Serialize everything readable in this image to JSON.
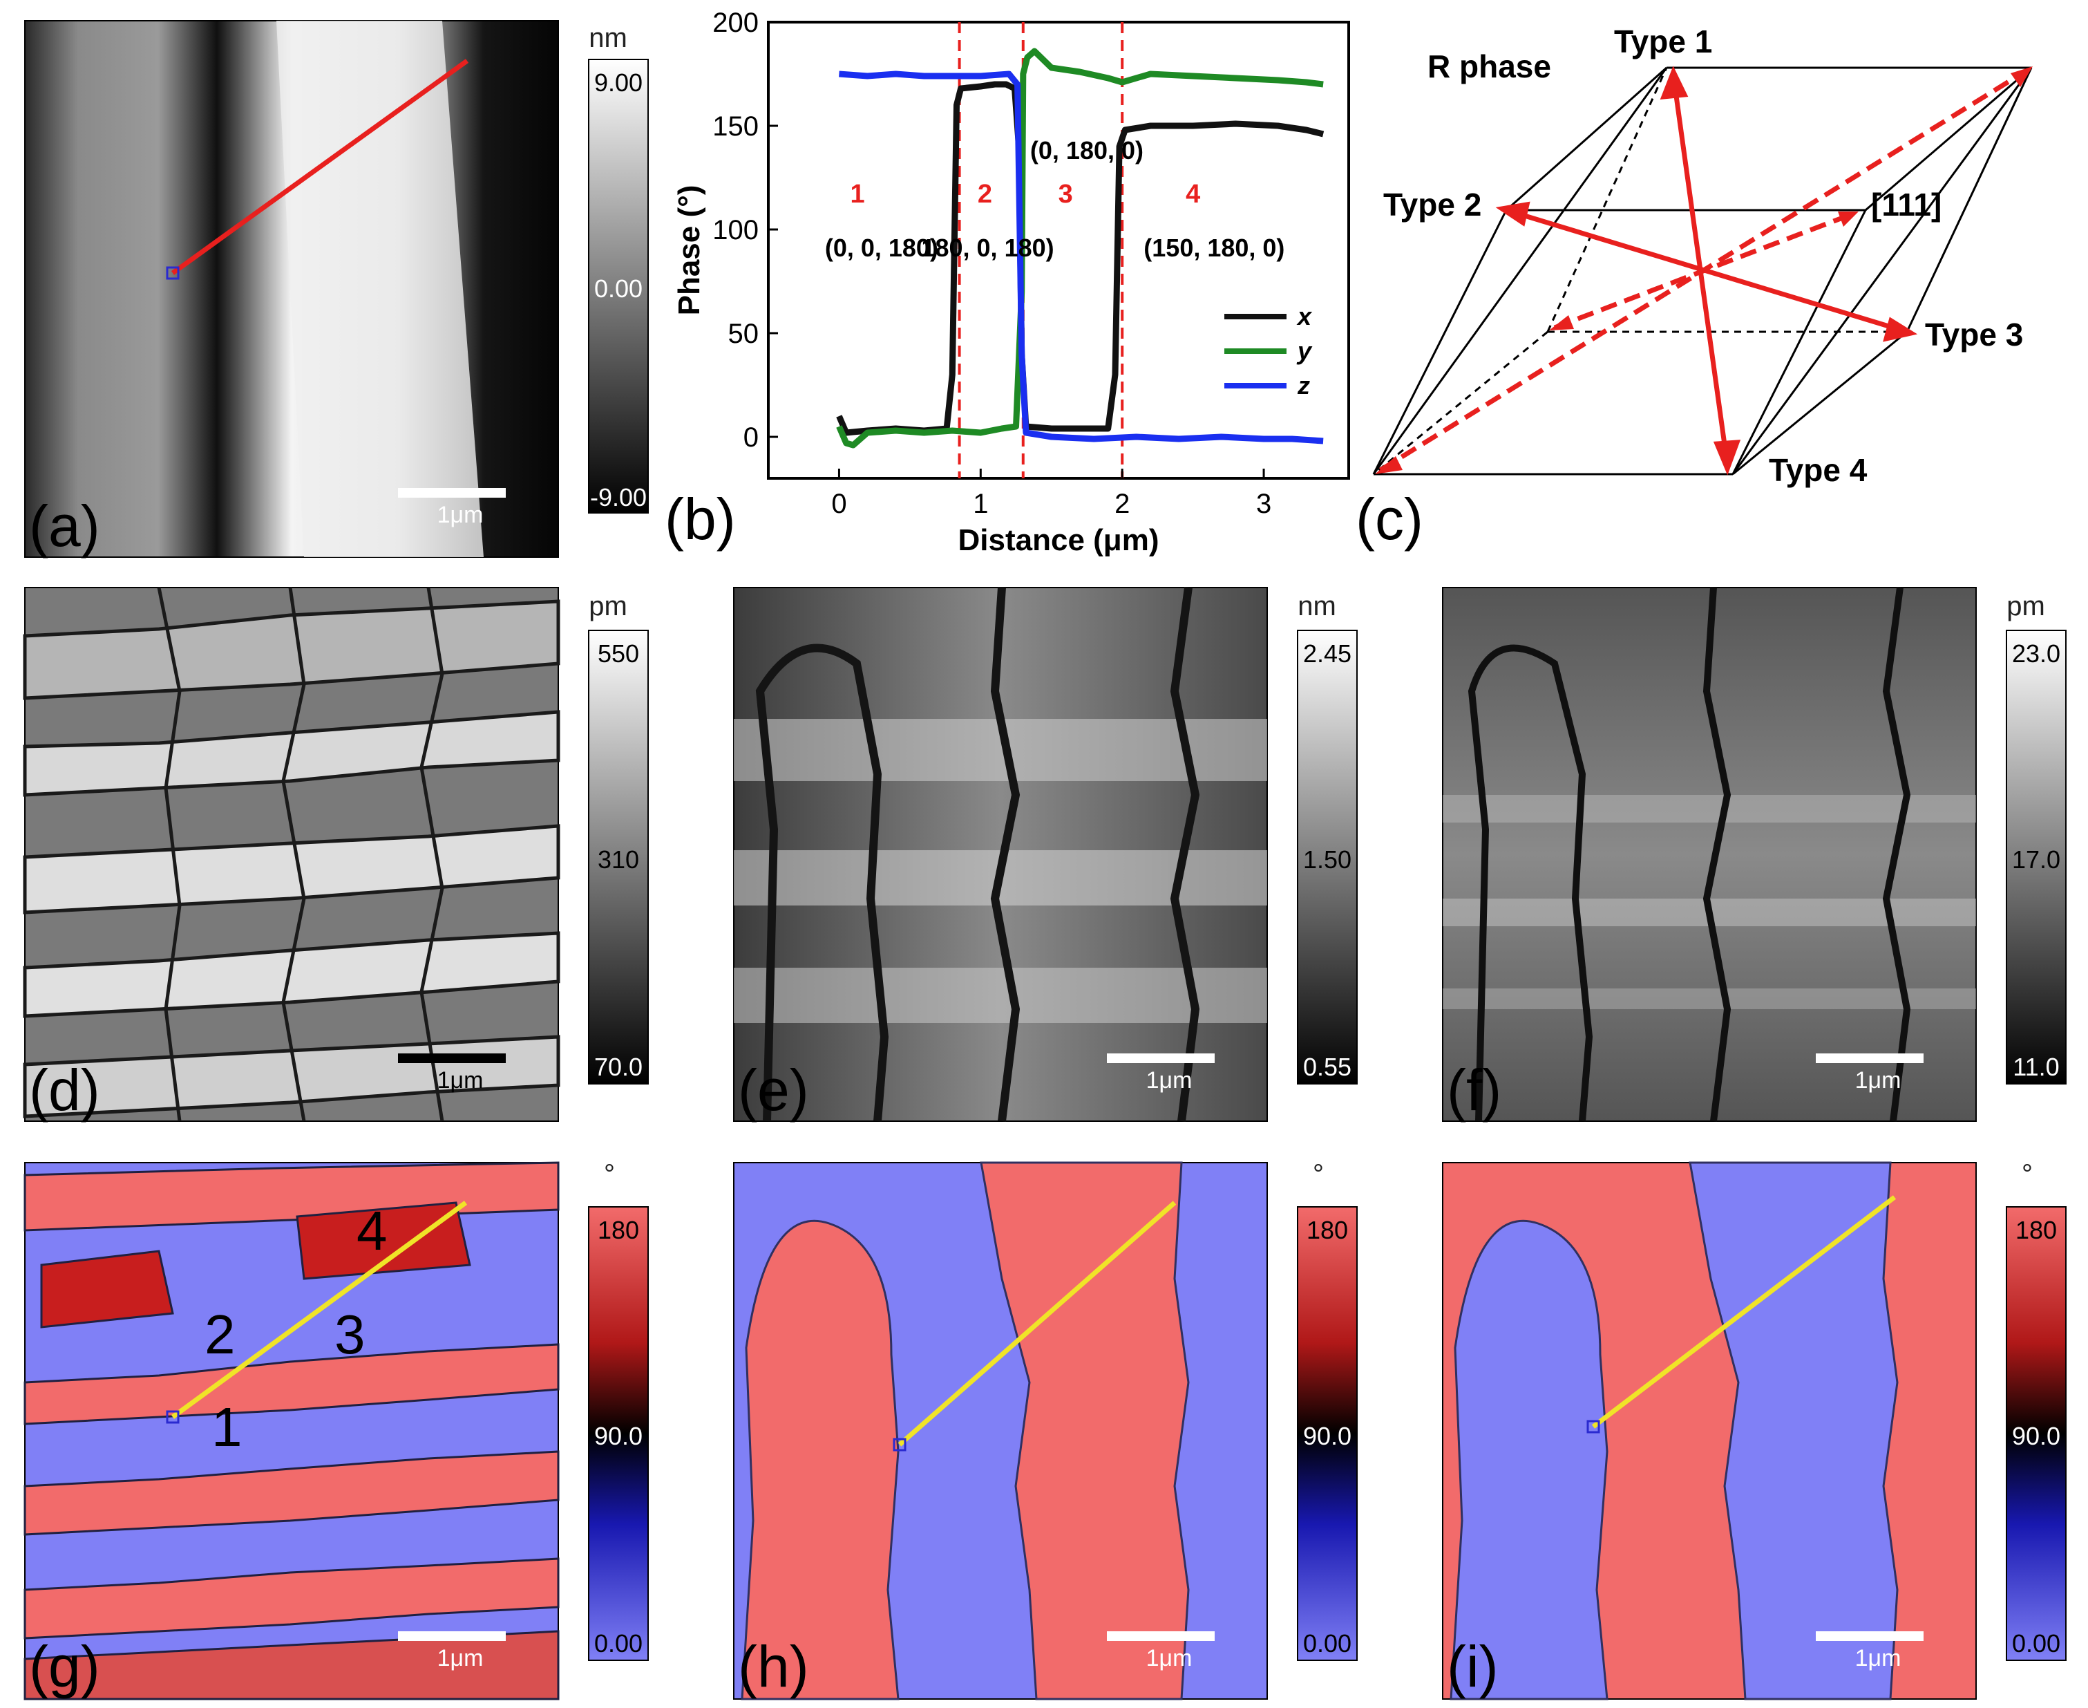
{
  "panels": {
    "a": {
      "letter": "(a)",
      "unit": "nm",
      "ticks": [
        "9.00",
        "0.00",
        "-9.00"
      ],
      "scalebar": "1μm"
    },
    "b": {
      "letter": "(b)"
    },
    "c": {
      "letter": "(c)"
    },
    "d": {
      "letter": "(d)",
      "unit": "pm",
      "ticks": [
        "550",
        "310",
        "70.0"
      ],
      "scalebar": "1μm"
    },
    "e": {
      "letter": "(e)",
      "unit": "nm",
      "ticks": [
        "2.45",
        "1.50",
        "0.55"
      ],
      "scalebar": "1μm"
    },
    "f": {
      "letter": "(f)",
      "unit": "pm",
      "ticks": [
        "23.0",
        "17.0",
        "11.0"
      ],
      "scalebar": "1μm"
    },
    "g": {
      "letter": "(g)",
      "unit": "°",
      "ticks": [
        "180",
        "90.0",
        "0.00"
      ],
      "scalebar": "1μm",
      "domain_labels": [
        "1",
        "2",
        "3",
        "4"
      ]
    },
    "h": {
      "letter": "(h)",
      "unit": "°",
      "ticks": [
        "180",
        "90.0",
        "0.00"
      ],
      "scalebar": "1μm"
    },
    "i": {
      "letter": "(i)",
      "unit": "°",
      "ticks": [
        "180",
        "90.0",
        "0.00"
      ],
      "scalebar": "1μm"
    }
  },
  "crystal": {
    "title": "R phase",
    "labels": [
      "Type 1",
      "Type 2",
      "[111]",
      "Type 3",
      "Type 4"
    ]
  },
  "colors": {
    "x": "#111111",
    "y": "#1e8a24",
    "z": "#1a2ff0",
    "boundary": "#e8201e",
    "red_domain": "#f26b6b",
    "blue_domain": "#8080f6",
    "profile_line": "#f0e428"
  },
  "chart_data": {
    "type": "line",
    "xlabel": "Distance (μm)",
    "ylabel": "Phase (°)",
    "xlim": [
      -0.5,
      3.6
    ],
    "ylim": [
      -20,
      200
    ],
    "xticks": [
      0,
      1,
      2,
      3
    ],
    "yticks": [
      0,
      50,
      100,
      150,
      200
    ],
    "boundaries": [
      0.85,
      1.3,
      2.0
    ],
    "segments": [
      {
        "number": "1",
        "coords": "(0, 0, 180)"
      },
      {
        "number": "2",
        "coords": "180, 0, 180)"
      },
      {
        "number": "3",
        "coords": "(0, 180, 0)"
      },
      {
        "number": "4",
        "coords": "(150, 180, 0)"
      }
    ],
    "series": [
      {
        "name": "x",
        "points": [
          [
            0,
            10
          ],
          [
            0.05,
            2
          ],
          [
            0.2,
            3
          ],
          [
            0.4,
            4
          ],
          [
            0.6,
            3
          ],
          [
            0.76,
            4
          ],
          [
            0.8,
            30
          ],
          [
            0.83,
            160
          ],
          [
            0.86,
            168
          ],
          [
            1.0,
            169
          ],
          [
            1.1,
            170
          ],
          [
            1.18,
            170
          ],
          [
            1.24,
            168
          ],
          [
            1.27,
            140
          ],
          [
            1.29,
            40
          ],
          [
            1.32,
            5
          ],
          [
            1.5,
            4
          ],
          [
            1.7,
            4
          ],
          [
            1.9,
            4
          ],
          [
            1.95,
            30
          ],
          [
            1.98,
            140
          ],
          [
            2.02,
            148
          ],
          [
            2.2,
            150
          ],
          [
            2.5,
            150
          ],
          [
            2.8,
            151
          ],
          [
            3.1,
            150
          ],
          [
            3.3,
            148
          ],
          [
            3.42,
            146
          ]
        ]
      },
      {
        "name": "y",
        "points": [
          [
            0,
            5
          ],
          [
            0.05,
            -3
          ],
          [
            0.1,
            -4
          ],
          [
            0.2,
            2
          ],
          [
            0.4,
            3
          ],
          [
            0.6,
            2
          ],
          [
            0.8,
            3
          ],
          [
            1.0,
            2
          ],
          [
            1.15,
            4
          ],
          [
            1.25,
            5
          ],
          [
            1.29,
            70
          ],
          [
            1.3,
            175
          ],
          [
            1.33,
            183
          ],
          [
            1.38,
            186
          ],
          [
            1.5,
            178
          ],
          [
            1.7,
            176
          ],
          [
            1.9,
            173
          ],
          [
            2.0,
            171
          ],
          [
            2.2,
            175
          ],
          [
            2.5,
            174
          ],
          [
            2.8,
            173
          ],
          [
            3.1,
            172
          ],
          [
            3.3,
            171
          ],
          [
            3.42,
            170
          ]
        ]
      },
      {
        "name": "z",
        "points": [
          [
            0,
            175
          ],
          [
            0.2,
            174
          ],
          [
            0.4,
            175
          ],
          [
            0.6,
            174
          ],
          [
            0.8,
            174
          ],
          [
            1.0,
            174
          ],
          [
            1.2,
            175
          ],
          [
            1.26,
            170
          ],
          [
            1.29,
            40
          ],
          [
            1.32,
            2
          ],
          [
            1.5,
            0
          ],
          [
            1.8,
            -1
          ],
          [
            2.1,
            0
          ],
          [
            2.4,
            -1
          ],
          [
            2.7,
            0
          ],
          [
            3.0,
            -1
          ],
          [
            3.2,
            -1
          ],
          [
            3.42,
            -2
          ]
        ]
      }
    ]
  }
}
